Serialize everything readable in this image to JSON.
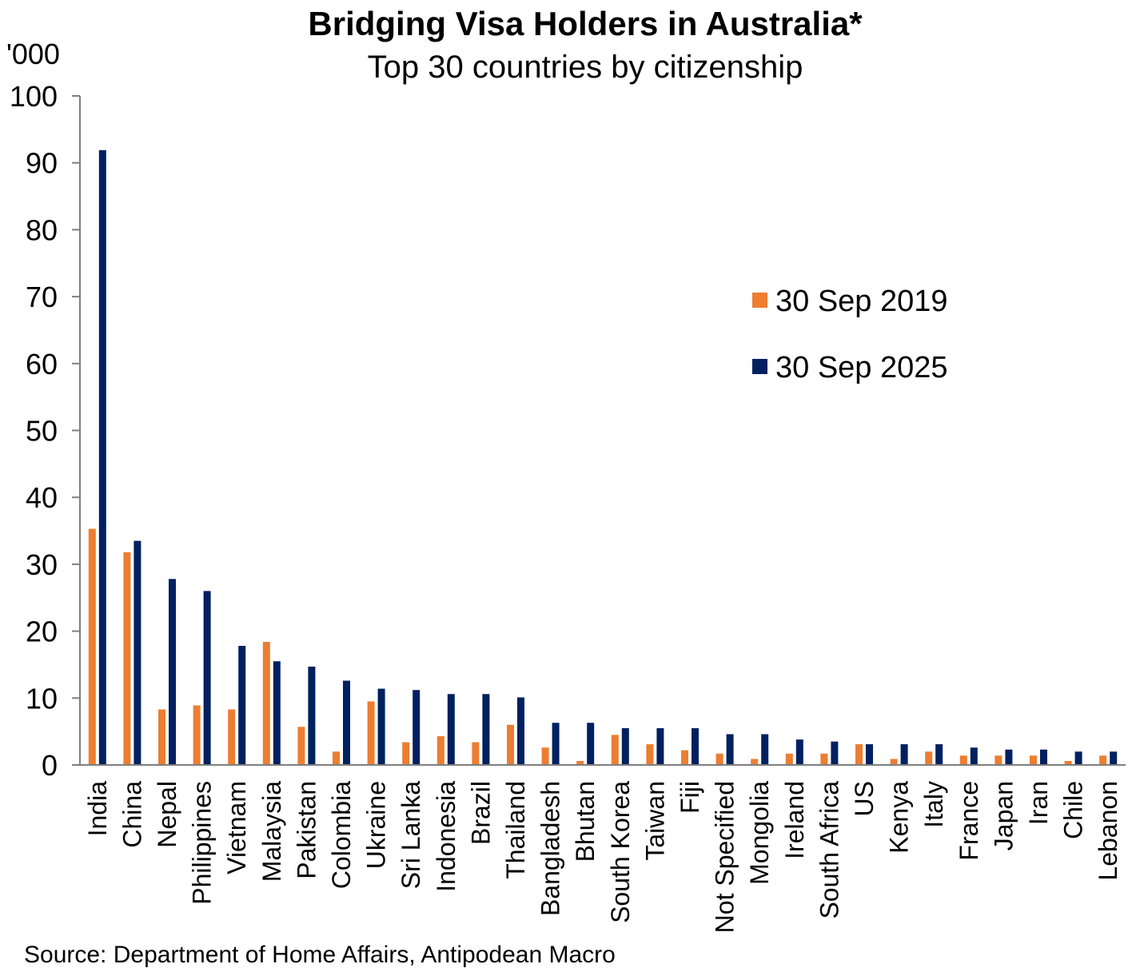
{
  "chart_data": {
    "type": "bar",
    "title": "Bridging Visa Holders in Australia*",
    "subtitle": "Top 30 countries by citizenship",
    "ylabel": "'000",
    "xlabel": "",
    "ylim": [
      0,
      100
    ],
    "yticks": [
      0,
      10,
      20,
      30,
      40,
      50,
      60,
      70,
      80,
      90,
      100
    ],
    "grid": false,
    "legend_position": "right",
    "categories": [
      "India",
      "China",
      "Nepal",
      "Philippines",
      "Vietnam",
      "Malaysia",
      "Pakistan",
      "Colombia",
      "Ukraine",
      "Sri Lanka",
      "Indonesia",
      "Brazil",
      "Thailand",
      "Bangladesh",
      "Bhutan",
      "South Korea",
      "Taiwan",
      "Fiji",
      "Not Specified",
      "Mongolia",
      "Ireland",
      "South Africa",
      "US",
      "Kenya",
      "Italy",
      "France",
      "Japan",
      "Iran",
      "Chile",
      "Lebanon"
    ],
    "series": [
      {
        "name": "30 Sep 2019",
        "color": "#ED7D31",
        "values": [
          35.3,
          31.8,
          8.3,
          8.9,
          8.3,
          18.4,
          5.7,
          2.0,
          9.5,
          3.4,
          4.3,
          3.4,
          6.0,
          2.6,
          0.6,
          4.5,
          3.1,
          2.2,
          1.7,
          0.9,
          1.7,
          1.7,
          3.1,
          0.9,
          2.0,
          1.4,
          1.4,
          1.4,
          0.6,
          1.4
        ]
      },
      {
        "name": "30 Sep 2025",
        "color": "#002060",
        "values": [
          91.9,
          33.5,
          27.8,
          26.0,
          17.8,
          15.5,
          14.7,
          12.6,
          11.4,
          11.2,
          10.6,
          10.6,
          10.1,
          6.3,
          6.3,
          5.5,
          5.5,
          5.5,
          4.6,
          4.6,
          3.8,
          3.5,
          3.1,
          3.1,
          3.1,
          2.6,
          2.3,
          2.3,
          2.0,
          2.0
        ]
      }
    ],
    "source": "Source: Department of Home Affairs, Antipodean Macro"
  }
}
